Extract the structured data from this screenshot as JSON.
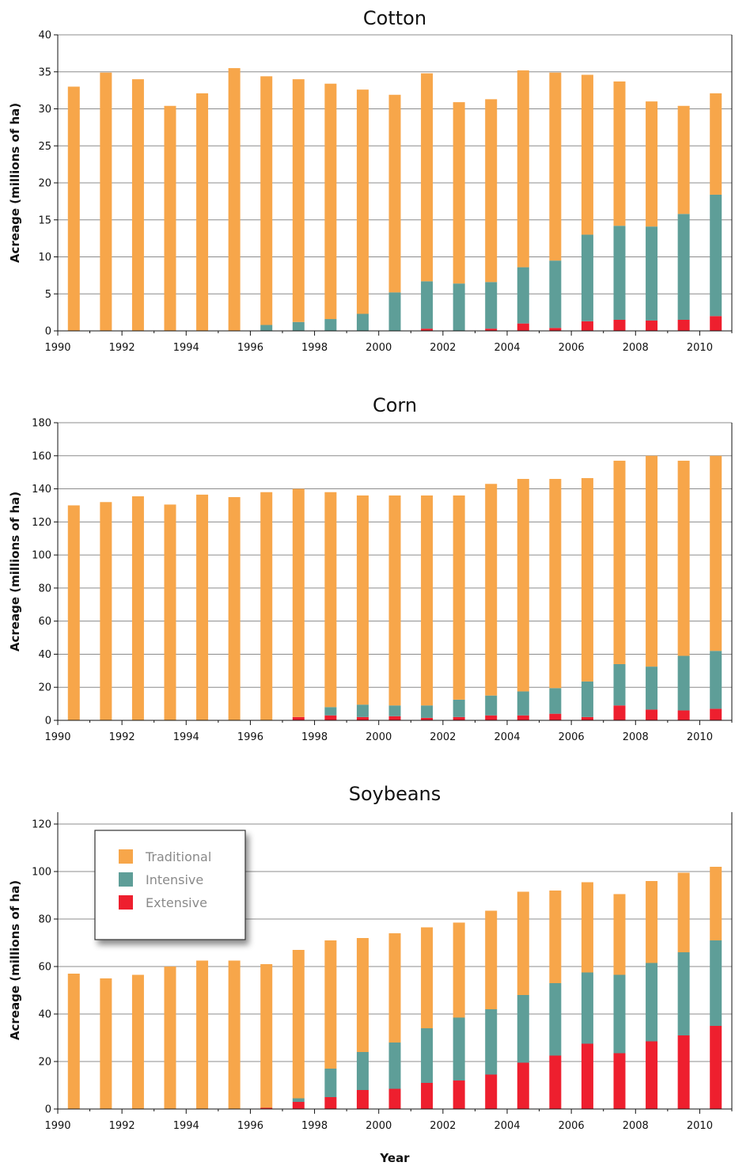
{
  "colors": {
    "Traditional": "#F7A64A",
    "Intensive": "#5E9E98",
    "Extensive": "#EE1F2E",
    "grid": "#8c8c8c",
    "axis": "#111111"
  },
  "chart_data": [
    {
      "type": "bar",
      "stacked": true,
      "title": "Cotton",
      "ylabel": "Acreage (millions of ha)",
      "xlabel": "",
      "ylim": [
        0,
        40
      ],
      "yticks": [
        0,
        5,
        10,
        15,
        20,
        25,
        30,
        35,
        40
      ],
      "grid": true,
      "categories": [
        "1990",
        "1991",
        "1992",
        "1993",
        "1994",
        "1995",
        "1996",
        "1997",
        "1998",
        "1999",
        "2000",
        "2001",
        "2002",
        "2003",
        "2004",
        "2005",
        "2006",
        "2007",
        "2008",
        "2009",
        "2010"
      ],
      "xtick_labels": [
        "1990",
        "",
        "1992",
        "",
        "1994",
        "",
        "1996",
        "",
        "1998",
        "",
        "2000",
        "",
        "2002",
        "",
        "2004",
        "",
        "2006",
        "",
        "2008",
        "",
        "2010"
      ],
      "series": [
        {
          "name": "Extensive",
          "values": [
            0,
            0,
            0,
            0,
            0,
            0,
            0,
            0,
            0,
            0,
            0,
            0.3,
            0,
            0.3,
            1.0,
            0.4,
            1.3,
            1.5,
            1.4,
            1.5,
            2.0
          ]
        },
        {
          "name": "Intensive",
          "values": [
            0,
            0,
            0,
            0,
            0,
            0,
            0.8,
            1.2,
            1.6,
            2.3,
            5.2,
            6.4,
            6.4,
            6.3,
            7.6,
            9.1,
            11.7,
            12.7,
            12.7,
            14.3,
            16.4
          ]
        },
        {
          "name": "Traditional",
          "values": [
            33.0,
            34.9,
            34.0,
            30.4,
            32.1,
            35.5,
            33.6,
            32.8,
            31.8,
            30.3,
            26.7,
            28.1,
            24.5,
            24.7,
            26.6,
            25.4,
            21.6,
            19.5,
            16.9,
            14.6,
            13.7
          ]
        }
      ]
    },
    {
      "type": "bar",
      "stacked": true,
      "title": "Corn",
      "ylabel": "Acreage (millions of ha)",
      "xlabel": "",
      "ylim": [
        0,
        180
      ],
      "yticks": [
        0,
        20,
        40,
        60,
        80,
        100,
        120,
        140,
        160,
        180
      ],
      "grid": true,
      "categories": [
        "1990",
        "1991",
        "1992",
        "1993",
        "1994",
        "1995",
        "1996",
        "1997",
        "1998",
        "1999",
        "2000",
        "2001",
        "2002",
        "2003",
        "2004",
        "2005",
        "2006",
        "2007",
        "2008",
        "2009",
        "2010"
      ],
      "xtick_labels": [
        "1990",
        "",
        "1992",
        "",
        "1994",
        "",
        "1996",
        "",
        "1998",
        "",
        "2000",
        "",
        "2002",
        "",
        "2004",
        "",
        "2006",
        "",
        "2008",
        "",
        "2010"
      ],
      "series": [
        {
          "name": "Extensive",
          "values": [
            0,
            0,
            0,
            0,
            0,
            0,
            0,
            2,
            3,
            2,
            2.5,
            1.5,
            2,
            3,
            3,
            4,
            2,
            9,
            6.5,
            6,
            7
          ]
        },
        {
          "name": "Intensive",
          "values": [
            0,
            0,
            0,
            0,
            0,
            0,
            0,
            0,
            5,
            7.5,
            6.5,
            7.5,
            10.5,
            12,
            14.5,
            15.5,
            21.5,
            25,
            26,
            33,
            35
          ]
        },
        {
          "name": "Traditional",
          "values": [
            130,
            132,
            135.5,
            130.5,
            136.5,
            135,
            138,
            138,
            130,
            126.5,
            127,
            127,
            123.5,
            128,
            128.5,
            126.5,
            123,
            123,
            127.5,
            118,
            118
          ]
        }
      ]
    },
    {
      "type": "bar",
      "stacked": true,
      "title": "Soybeans",
      "ylabel": "Acreage (millions of ha)",
      "xlabel": "Year",
      "ylim": [
        0,
        125
      ],
      "yticks": [
        0,
        20,
        40,
        60,
        80,
        100,
        120
      ],
      "grid": true,
      "legend_position": "top-left",
      "categories": [
        "1990",
        "1991",
        "1992",
        "1993",
        "1994",
        "1995",
        "1996",
        "1997",
        "1998",
        "1999",
        "2000",
        "2001",
        "2002",
        "2003",
        "2004",
        "2005",
        "2006",
        "2007",
        "2008",
        "2009",
        "2010"
      ],
      "xtick_labels": [
        "1990",
        "",
        "1992",
        "",
        "1994",
        "",
        "1996",
        "",
        "1998",
        "",
        "2000",
        "",
        "2002",
        "",
        "2004",
        "",
        "2006",
        "",
        "2008",
        "",
        "2010"
      ],
      "series": [
        {
          "name": "Extensive",
          "values": [
            0,
            0,
            0,
            0,
            0,
            0,
            0.5,
            3,
            5,
            8,
            8.5,
            11,
            12,
            14.5,
            19.5,
            22.5,
            27.5,
            23.5,
            28.5,
            31,
            35
          ]
        },
        {
          "name": "Intensive",
          "values": [
            0,
            0,
            0,
            0,
            0,
            0,
            0,
            1.5,
            12,
            16,
            19.5,
            23,
            26.5,
            27.5,
            28.5,
            30.5,
            30,
            33,
            33,
            35,
            36
          ]
        },
        {
          "name": "Traditional",
          "values": [
            57,
            55,
            56.5,
            60,
            62.5,
            62.5,
            60.5,
            62.5,
            54,
            48,
            46,
            42.5,
            40,
            41.5,
            43.5,
            39,
            38,
            34,
            34.5,
            33.5,
            31
          ]
        }
      ]
    }
  ],
  "legend": {
    "items": [
      "Traditional",
      "Intensive",
      "Extensive"
    ]
  }
}
